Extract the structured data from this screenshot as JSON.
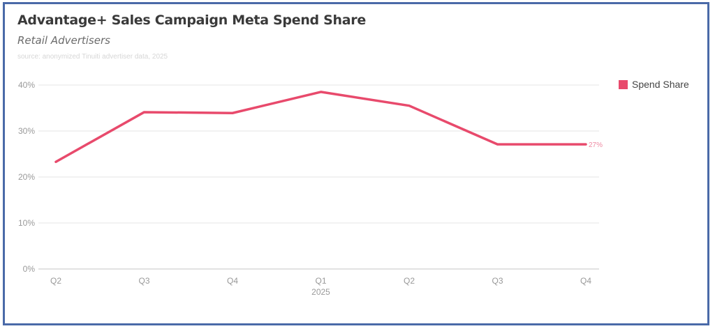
{
  "header": {
    "title": "Advantage+ Sales Campaign Meta Spend Share",
    "subtitle": "Retail Advertisers",
    "source": "source: anonymized Tinuiti advertiser data, 2025"
  },
  "legend": {
    "items": [
      {
        "label": "Spend Share",
        "color": "#e84a6c"
      }
    ]
  },
  "colors": {
    "line": "#e84a6c",
    "grid": "#e6e6e6",
    "axis_text": "#999999",
    "frame": "#4a6aa8"
  },
  "chart_data": {
    "type": "line",
    "title": "Advantage+ Sales Campaign Meta Spend Share",
    "subtitle": "Retail Advertisers",
    "source": "source: anonymized Tinuiti advertiser data, 2025",
    "categories": [
      "Q2",
      "Q3",
      "Q4",
      "Q1",
      "Q2",
      "Q3",
      "Q4"
    ],
    "category_sublabels": [
      "",
      "",
      "",
      "2025",
      "",
      "",
      ""
    ],
    "series": [
      {
        "name": "Spend Share",
        "color": "#e84a6c",
        "values": [
          23.3,
          34.1,
          33.9,
          38.5,
          35.5,
          27.1,
          27.1
        ]
      }
    ],
    "end_label": "27%",
    "xlabel": "",
    "ylabel": "",
    "ylim": [
      0,
      40
    ],
    "yticks": [
      "0%",
      "10%",
      "20%",
      "30%",
      "40%"
    ],
    "grid": true,
    "legend_position": "right"
  }
}
